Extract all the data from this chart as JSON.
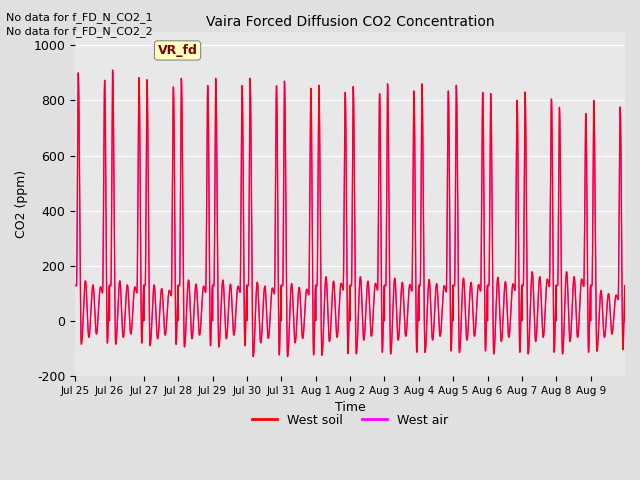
{
  "title": "Vaira Forced Diffusion CO2 Concentration",
  "xlabel": "Time",
  "ylabel": "CO2 (ppm)",
  "ylim": [
    -200,
    1050
  ],
  "yticks": [
    -200,
    0,
    200,
    400,
    600,
    800,
    1000
  ],
  "background_color": "#e0e0e0",
  "plot_bg_color": "#e8e8e8",
  "note_line1": "No data for f_FD_N_CO2_1",
  "note_line2": "No data for f_FD_N_CO2_2",
  "annotation_box_text": "VR_fd",
  "annotation_box_color": "#ffffc0",
  "annotation_box_text_color": "#800000",
  "x_tick_labels": [
    "Jul 25",
    "Jul 26",
    "Jul 27",
    "Jul 28",
    "Jul 29",
    "Jul 30",
    "Jul 31",
    "Aug 1",
    "Aug 2",
    "Aug 3",
    "Aug 4",
    "Aug 5",
    "Aug 6",
    "Aug 7",
    "Aug 8",
    "Aug 9"
  ],
  "soil_color": "#ff0000",
  "air_color": "#ff00ff",
  "soil_label": "West soil",
  "air_label": "West air",
  "num_cycles": 16,
  "soil_peaks": [
    900,
    910,
    875,
    880,
    880,
    880,
    870,
    855,
    850,
    860,
    860,
    855,
    825,
    830,
    775,
    800
  ],
  "soil_troughs": [
    -85,
    -85,
    -90,
    -95,
    -95,
    -130,
    -130,
    -125,
    -120,
    -120,
    -115,
    -115,
    -120,
    -120,
    -120,
    -110
  ],
  "soil_mid_peaks": [
    145,
    145,
    130,
    148,
    148,
    140,
    135,
    160,
    160,
    155,
    150,
    155,
    158,
    178,
    178,
    110
  ],
  "soil_mid_troughs": [
    -60,
    -60,
    -65,
    -65,
    -65,
    -80,
    -80,
    -75,
    -70,
    -70,
    -70,
    -70,
    -75,
    -75,
    -75,
    -60
  ]
}
